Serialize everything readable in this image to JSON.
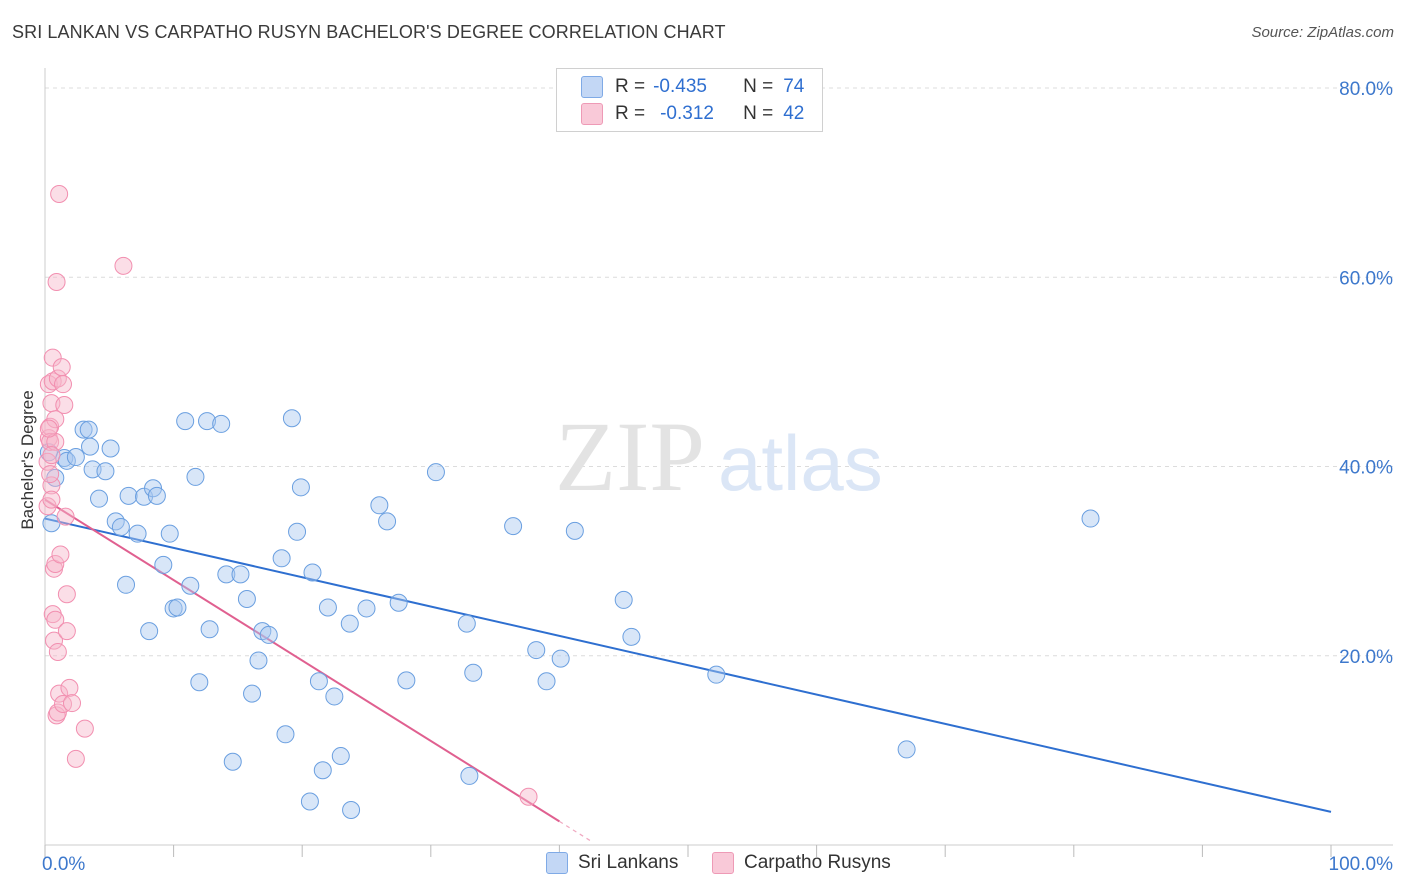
{
  "title": "SRI LANKAN VS CARPATHO RUSYN BACHELOR'S DEGREE CORRELATION CHART",
  "source": "Source: ZipAtlas.com",
  "watermark": {
    "zip": "ZIP",
    "atlas": "atlas"
  },
  "legend": {
    "r_label": "R =",
    "n_label": "N =",
    "series": [
      {
        "name": "Sri Lankans",
        "r": "-0.435",
        "n": "74",
        "color": "#a9c7f0"
      },
      {
        "name": "Carpatho Rusyns",
        "r": "-0.312",
        "n": "42",
        "color": "#f6b6ca"
      }
    ]
  },
  "chart_data": {
    "type": "scatter",
    "title": "SRI LANKAN VS CARPATHO RUSYN BACHELOR'S DEGREE CORRELATION CHART",
    "xlabel": "",
    "ylabel": "Bachelor's Degree",
    "xlim": [
      0,
      100
    ],
    "ylim": [
      0,
      80
    ],
    "x_tick_labels": [
      "0.0%",
      "100.0%"
    ],
    "y_tick_labels": [
      "20.0%",
      "40.0%",
      "60.0%",
      "80.0%"
    ],
    "y_ticks": [
      20,
      40,
      60,
      80
    ],
    "series": [
      {
        "name": "Sri Lankans",
        "color": "#6a9fe0",
        "trend": {
          "x": [
            0,
            100
          ],
          "y": [
            34.5,
            3.5
          ],
          "color": "#2e6fd0"
        },
        "points": [
          [
            0.5,
            34.0
          ],
          [
            0.8,
            38.8
          ],
          [
            1.5,
            40.9
          ],
          [
            1.7,
            40.6
          ],
          [
            2.4,
            41.0
          ],
          [
            3.0,
            43.9
          ],
          [
            3.4,
            43.9
          ],
          [
            3.5,
            42.1
          ],
          [
            3.7,
            39.7
          ],
          [
            4.2,
            36.6
          ],
          [
            4.7,
            39.5
          ],
          [
            5.1,
            41.9
          ],
          [
            5.5,
            34.2
          ],
          [
            5.9,
            33.6
          ],
          [
            6.3,
            27.5
          ],
          [
            6.5,
            36.9
          ],
          [
            7.2,
            32.9
          ],
          [
            7.7,
            36.8
          ],
          [
            8.1,
            22.6
          ],
          [
            8.4,
            37.7
          ],
          [
            8.7,
            36.9
          ],
          [
            9.2,
            29.6
          ],
          [
            9.7,
            32.9
          ],
          [
            10.0,
            25.0
          ],
          [
            10.3,
            25.1
          ],
          [
            10.9,
            44.8
          ],
          [
            11.3,
            27.4
          ],
          [
            11.7,
            38.9
          ],
          [
            12.0,
            17.2
          ],
          [
            12.6,
            44.8
          ],
          [
            12.8,
            22.8
          ],
          [
            13.7,
            44.5
          ],
          [
            14.1,
            28.6
          ],
          [
            14.6,
            8.8
          ],
          [
            15.2,
            28.6
          ],
          [
            15.7,
            26.0
          ],
          [
            16.1,
            16.0
          ],
          [
            16.6,
            19.5
          ],
          [
            16.9,
            22.6
          ],
          [
            17.4,
            22.2
          ],
          [
            18.4,
            30.3
          ],
          [
            18.7,
            11.7
          ],
          [
            19.2,
            45.1
          ],
          [
            19.6,
            33.1
          ],
          [
            19.9,
            37.8
          ],
          [
            20.6,
            4.6
          ],
          [
            20.8,
            28.8
          ],
          [
            21.3,
            17.3
          ],
          [
            21.6,
            7.9
          ],
          [
            22.0,
            25.1
          ],
          [
            22.5,
            15.7
          ],
          [
            23.0,
            9.4
          ],
          [
            23.7,
            23.4
          ],
          [
            23.8,
            3.7
          ],
          [
            25.0,
            25.0
          ],
          [
            26.0,
            35.9
          ],
          [
            26.6,
            34.2
          ],
          [
            27.5,
            25.6
          ],
          [
            28.1,
            17.4
          ],
          [
            30.4,
            39.4
          ],
          [
            32.8,
            23.4
          ],
          [
            33.3,
            18.2
          ],
          [
            33.0,
            7.3
          ],
          [
            36.4,
            33.7
          ],
          [
            38.2,
            20.6
          ],
          [
            39.0,
            17.3
          ],
          [
            40.1,
            19.7
          ],
          [
            41.2,
            33.2
          ],
          [
            45.0,
            25.9
          ],
          [
            45.6,
            22.0
          ],
          [
            52.2,
            18.0
          ],
          [
            67.0,
            10.1
          ],
          [
            81.3,
            34.5
          ],
          [
            0.3,
            41.5
          ]
        ]
      },
      {
        "name": "Carpatho Rusyns",
        "color": "#f28fb0",
        "trend": {
          "x": [
            0,
            40
          ],
          "y": [
            36.5,
            2.5
          ],
          "color": "#e06090",
          "dash_to_x": 42.5
        },
        "points": [
          [
            0.2,
            35.8
          ],
          [
            0.2,
            40.5
          ],
          [
            0.3,
            43.0
          ],
          [
            0.3,
            48.7
          ],
          [
            0.4,
            44.2
          ],
          [
            0.4,
            42.6
          ],
          [
            0.5,
            46.7
          ],
          [
            0.5,
            38.0
          ],
          [
            0.5,
            36.5
          ],
          [
            0.6,
            49.0
          ],
          [
            0.6,
            51.5
          ],
          [
            0.6,
            24.4
          ],
          [
            0.7,
            21.6
          ],
          [
            0.7,
            29.2
          ],
          [
            0.8,
            45.0
          ],
          [
            0.8,
            42.6
          ],
          [
            0.8,
            29.7
          ],
          [
            0.8,
            23.8
          ],
          [
            0.9,
            59.5
          ],
          [
            0.9,
            13.7
          ],
          [
            1.0,
            14.0
          ],
          [
            1.0,
            20.4
          ],
          [
            1.0,
            49.3
          ],
          [
            1.1,
            16.0
          ],
          [
            1.1,
            68.8
          ],
          [
            1.2,
            30.7
          ],
          [
            1.3,
            50.5
          ],
          [
            1.4,
            48.7
          ],
          [
            1.4,
            14.9
          ],
          [
            1.5,
            46.5
          ],
          [
            1.6,
            34.7
          ],
          [
            1.7,
            26.5
          ],
          [
            1.7,
            22.6
          ],
          [
            1.9,
            16.6
          ],
          [
            2.1,
            15.0
          ],
          [
            2.4,
            9.1
          ],
          [
            3.1,
            12.3
          ],
          [
            6.1,
            61.2
          ],
          [
            37.6,
            5.1
          ],
          [
            0.4,
            39.2
          ],
          [
            0.5,
            41.2
          ],
          [
            0.3,
            44.0
          ]
        ]
      }
    ]
  }
}
